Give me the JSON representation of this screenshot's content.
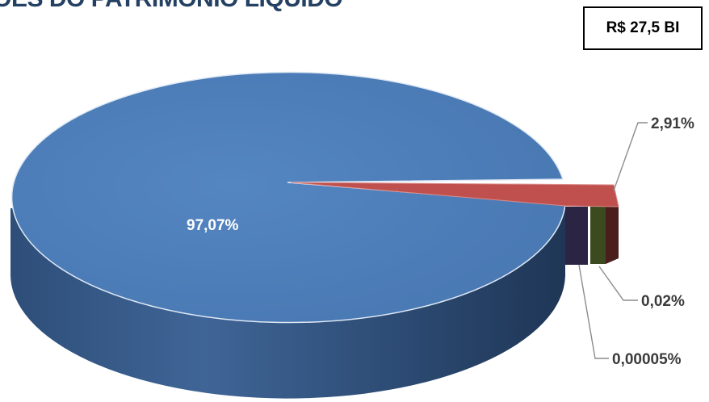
{
  "chart_data": {
    "type": "pie",
    "title": "ÇÕES DO PATRIMÔNIO LÍQUIDO",
    "total_label": "R$ 27,5 BI",
    "slices": [
      {
        "label": "97,07%",
        "value": 97.07,
        "color": "#4f81bd"
      },
      {
        "label": "2,91%",
        "value": 2.91,
        "color": "#c0504d"
      },
      {
        "label": "0,02%",
        "value": 0.02,
        "color": "#9bbb59"
      },
      {
        "label": "0,00005%",
        "value": 5e-05,
        "color": "#8064a2"
      }
    ]
  }
}
